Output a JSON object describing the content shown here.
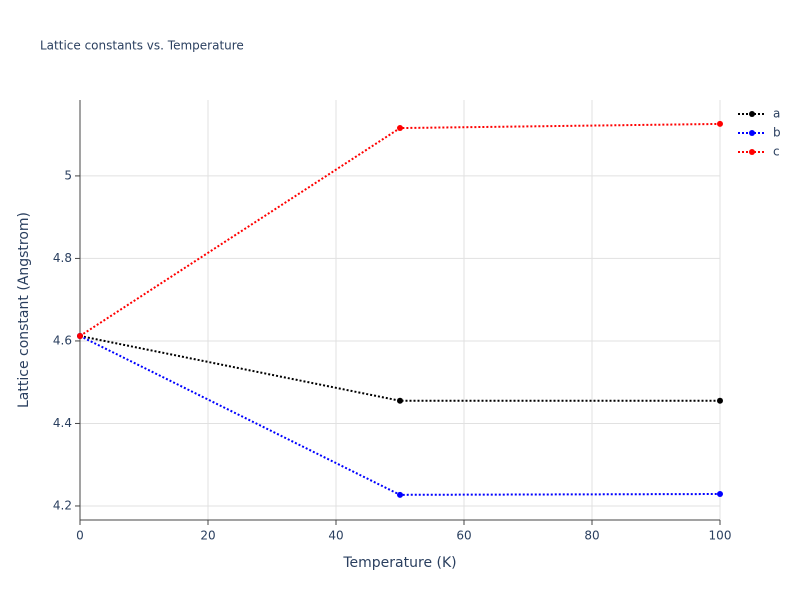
{
  "chart_data": {
    "type": "line",
    "title": "Lattice constants vs. Temperature",
    "x_label": "Temperature (K)",
    "y_label": "Lattice constant (Angstrom)",
    "x": [
      0,
      50,
      100
    ],
    "series": [
      {
        "name": "a",
        "color": "#000000",
        "values": [
          4.612,
          4.455,
          4.455
        ]
      },
      {
        "name": "b",
        "color": "#0000ff",
        "values": [
          4.612,
          4.227,
          4.229
        ]
      },
      {
        "name": "c",
        "color": "#ff0000",
        "values": [
          4.612,
          5.116,
          5.126
        ]
      }
    ],
    "xlim": [
      0,
      100
    ],
    "xticks": [
      0,
      20,
      40,
      60,
      80,
      100
    ],
    "ylim": [
      4.166,
      5.184
    ],
    "yticks": [
      4.2,
      4.4,
      4.6,
      4.8,
      5
    ],
    "grid": true,
    "legend": "top-right"
  }
}
